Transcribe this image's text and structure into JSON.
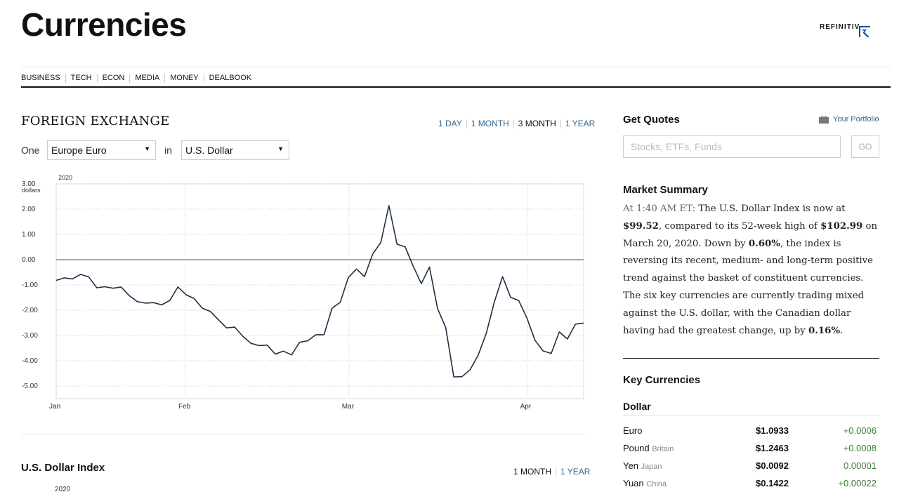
{
  "page": {
    "title": "Currencies"
  },
  "logo": {
    "text": "REFINITIV"
  },
  "nav": [
    "BUSINESS",
    "TECH",
    "ECON",
    "MEDIA",
    "MONEY",
    "DEALBOOK"
  ],
  "fx": {
    "title": "FOREIGN EXCHANGE",
    "ranges": [
      "1 DAY",
      "1 MONTH",
      "3 MONTH",
      "1 YEAR"
    ],
    "active_range": "3 MONTH",
    "one_label": "One",
    "in_label": "in",
    "from_currency": "Europe Euro",
    "to_currency": "U.S. Dollar"
  },
  "chart_data": {
    "type": "line",
    "year_label": "2020",
    "y_unit_label": "dollars",
    "ylim": [
      -5.5,
      3.0
    ],
    "y_ticks": [
      "3.00",
      "2.00",
      "1.00",
      "0.00",
      "-1.00",
      "-2.00",
      "-3.00",
      "-4.00",
      "-5.00"
    ],
    "x_ticks": [
      "Jan",
      "Feb",
      "Mar",
      "Apr"
    ],
    "series": [
      {
        "values": [
          -0.82,
          -0.72,
          -0.76,
          -0.58,
          -0.68,
          -1.11,
          -1.07,
          -1.13,
          -1.08,
          -1.42,
          -1.66,
          -1.72,
          -1.7,
          -1.79,
          -1.61,
          -1.08,
          -1.39,
          -1.54,
          -1.92,
          -2.05,
          -2.38,
          -2.7,
          -2.67,
          -3.03,
          -3.31,
          -3.4,
          -3.38,
          -3.74,
          -3.62,
          -3.77,
          -3.27,
          -3.21,
          -2.97,
          -2.97,
          -1.92,
          -1.69,
          -0.71,
          -0.37,
          -0.67,
          0.22,
          0.68,
          2.14,
          0.61,
          0.51,
          -0.26,
          -0.95,
          -0.29,
          -1.94,
          -2.68,
          -4.64,
          -4.63,
          -4.36,
          -3.78,
          -2.91,
          -1.67,
          -0.67,
          -1.49,
          -1.62,
          -2.3,
          -3.19,
          -3.61,
          -3.71,
          -2.86,
          -3.14,
          -2.55,
          -2.51
        ]
      }
    ]
  },
  "usd_index": {
    "title": "U.S. Dollar Index",
    "ranges": [
      "1 MONTH",
      "1 YEAR"
    ],
    "active_range": "1 MONTH",
    "year_label": "2020"
  },
  "quotes": {
    "title": "Get Quotes",
    "portfolio_label": "Your Portfolio",
    "search_placeholder": "Stocks, ETFs, Funds",
    "go_label": "GO"
  },
  "market_summary": {
    "title": "Market Summary",
    "time": "At 1:40 AM ET:",
    "t1": " The U.S. Dollar Index is now at ",
    "index_value": "$99.52",
    "t2": ", compared to its 52-week high of ",
    "high_value": "$102.99",
    "t3": " on March 20, 2020. Down by ",
    "change_pct": "0.60%",
    "t4": ", the index is reversing its recent, medium- and long-term positive trend against the basket of constituent currencies. The six key currencies are currently trading mixed against the U.S. dollar, with the Canadian dollar having had the greatest change, up by ",
    "top_change": "0.16%",
    "t5": "."
  },
  "key_currencies": {
    "title": "Key Currencies",
    "group": "Dollar",
    "rows": [
      {
        "name": "Euro",
        "sub": "",
        "price": "$1.0933",
        "change": "+0.0006"
      },
      {
        "name": "Pound",
        "sub": "Britain",
        "price": "$1.2463",
        "change": "+0.0008"
      },
      {
        "name": "Yen",
        "sub": "Japan",
        "price": "$0.0092",
        "change": "0.00001"
      },
      {
        "name": "Yuan",
        "sub": "China",
        "price": "$0.1422",
        "change": "+0.00022"
      }
    ]
  },
  "colors": {
    "link": "#326891",
    "positive": "#3c7d34",
    "series": "#1f2f44"
  }
}
